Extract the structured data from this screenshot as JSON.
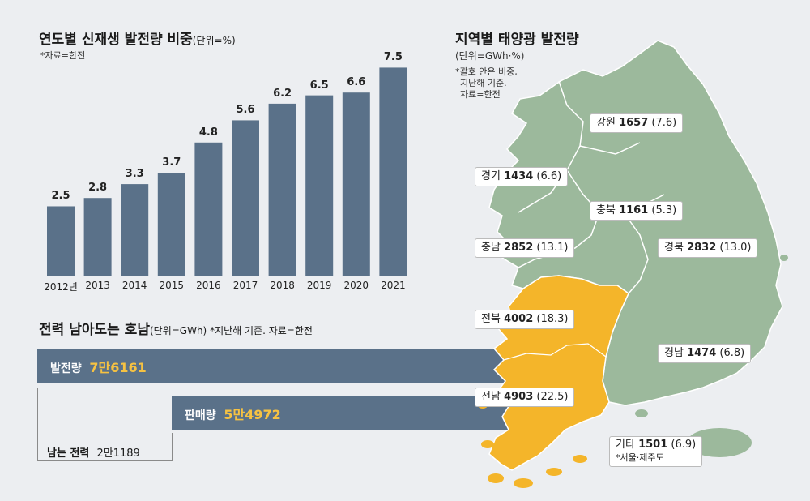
{
  "left_chart": {
    "title": "연도별 신재생 발전량 비중",
    "unit": "(단위=%)",
    "source": "*자료=한전"
  },
  "chart_data": [
    {
      "type": "bar",
      "title": "연도별 신재생 발전량 비중",
      "unit": "%",
      "categories": [
        "2012년",
        "2013",
        "2014",
        "2015",
        "2016",
        "2017",
        "2018",
        "2019",
        "2020",
        "2021"
      ],
      "values": [
        2.5,
        2.8,
        3.3,
        3.7,
        4.8,
        5.6,
        6.2,
        6.5,
        6.6,
        7.5
      ],
      "value_labels": [
        "2.5",
        "2.8",
        "3.3",
        "3.7",
        "4.8",
        "5.6",
        "6.2",
        "6.5",
        "6.6",
        "7.5"
      ],
      "bar_color": "#5a7189",
      "grid": false,
      "legend": "none"
    },
    {
      "type": "bar",
      "orientation": "horizontal",
      "title": "전력 남아도는 호남",
      "unit": "GWh",
      "categories": [
        "발전량",
        "판매량",
        "남는 전력"
      ],
      "values": [
        76161,
        54972,
        21189
      ],
      "value_labels": [
        "7만6161",
        "5만4972",
        "2만1189"
      ]
    }
  ],
  "surplus": {
    "title": "전력 남아도는 호남",
    "unit": "(단위=GWh)",
    "note": " *지난해 기준. 자료=한전",
    "generation": {
      "label": "발전량",
      "value": "7만6161"
    },
    "sales": {
      "label": "판매량",
      "value": "5만4972"
    },
    "remaining": {
      "label": "남는 전력",
      "value": "2만1189"
    },
    "bar_color": "#5a7189",
    "value_color": "#f6c242"
  },
  "map": {
    "title": "지역별 태양광 발전량",
    "unit": "(단위=GWh·%)",
    "notes": [
      "*괄호 안은 비중,",
      "지난해 기준.",
      "자료=한전"
    ],
    "highlight_color": "#f4b52a",
    "base_color": "#9cb99c",
    "regions": [
      {
        "name": "강원",
        "value": "1657",
        "share": "(7.6)"
      },
      {
        "name": "경기",
        "value": "1434",
        "share": "(6.6)"
      },
      {
        "name": "충북",
        "value": "1161",
        "share": "(5.3)"
      },
      {
        "name": "충남",
        "value": "2852",
        "share": "(13.1)"
      },
      {
        "name": "경북",
        "value": "2832",
        "share": "(13.0)"
      },
      {
        "name": "전북",
        "value": "4002",
        "share": "(18.3)"
      },
      {
        "name": "경남",
        "value": "1474",
        "share": "(6.8)"
      },
      {
        "name": "전남",
        "value": "4903",
        "share": "(22.5)"
      },
      {
        "name": "기타",
        "value": "1501",
        "share": "(6.9)",
        "note": "*서울·제주도"
      }
    ]
  }
}
